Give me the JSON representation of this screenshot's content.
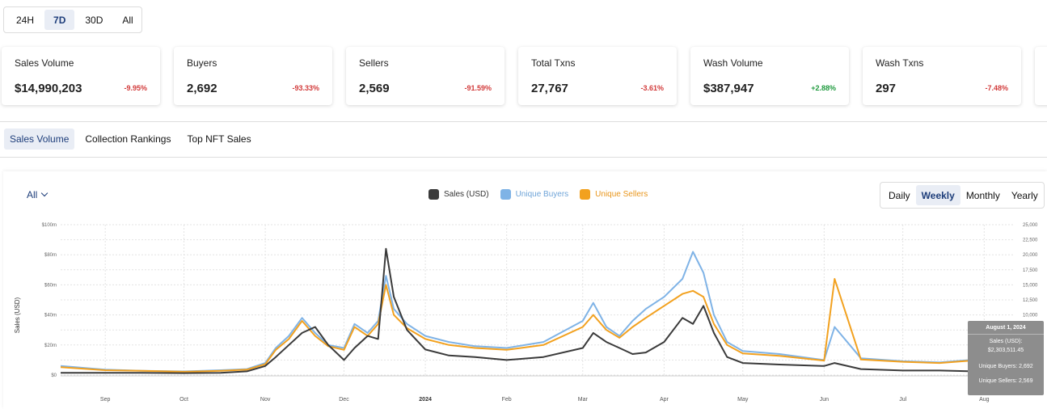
{
  "time_range": {
    "options": [
      "24H",
      "7D",
      "30D",
      "All"
    ],
    "selected": "7D"
  },
  "stats": [
    {
      "label": "Sales Volume",
      "value": "$14,990,203",
      "change": "-9.95%",
      "direction": "down"
    },
    {
      "label": "Buyers",
      "value": "2,692",
      "change": "-93.33%",
      "direction": "down"
    },
    {
      "label": "Sellers",
      "value": "2,569",
      "change": "-91.59%",
      "direction": "down"
    },
    {
      "label": "Total Txns",
      "value": "27,767",
      "change": "-3.61%",
      "direction": "down"
    },
    {
      "label": "Wash Volume",
      "value": "$387,947",
      "change": "+2.88%",
      "direction": "up"
    },
    {
      "label": "Wash Txns",
      "value": "297",
      "change": "-7.48%",
      "direction": "down"
    }
  ],
  "tabs": {
    "items": [
      "Sales Volume",
      "Collection Rankings",
      "Top NFT Sales"
    ],
    "selected": "Sales Volume"
  },
  "filter": {
    "label": "All"
  },
  "intervals": {
    "options": [
      "Daily",
      "Weekly",
      "Monthly",
      "Yearly"
    ],
    "selected": "Weekly"
  },
  "colors": {
    "sales": "#3a3a3a",
    "buyers": "#7fb3e6",
    "sellers": "#f2a11f",
    "accent": "#1d3d7a",
    "negative": "#d23b3b",
    "positive": "#1f9a3e"
  },
  "tooltip": {
    "date": "August 1, 2024",
    "sales_label": "Sales (USD):",
    "sales_value": "$2,303,511.45",
    "buyers": "Unique Buyers: 2,692",
    "sellers": "Unique Sellers: 2,569"
  },
  "chart_data": {
    "type": "line",
    "ylabel": "Sales (USD)",
    "y_left": {
      "min": 0,
      "max": 100000000,
      "ticks": [
        "$0",
        "$20m",
        "$40m",
        "$60m",
        "$80m",
        "$100m"
      ]
    },
    "y_right": {
      "min": 0,
      "max": 25000,
      "ticks": [
        "0",
        "2,500",
        "5,000",
        "7,500",
        "10,000",
        "12,500",
        "15,000",
        "17,500",
        "20,000",
        "22,500",
        "25,000"
      ]
    },
    "x_range": [
      "2023-08-15",
      "2024-08-12"
    ],
    "x_ticks": [
      {
        "label": "Sep",
        "date": "2023-09-01",
        "bold": false
      },
      {
        "label": "Oct",
        "date": "2023-10-01",
        "bold": false
      },
      {
        "label": "Nov",
        "date": "2023-11-01",
        "bold": false
      },
      {
        "label": "Dec",
        "date": "2023-12-01",
        "bold": false
      },
      {
        "label": "2024",
        "date": "2024-01-01",
        "bold": true
      },
      {
        "label": "Feb",
        "date": "2024-02-01",
        "bold": false
      },
      {
        "label": "Mar",
        "date": "2024-03-01",
        "bold": false
      },
      {
        "label": "Apr",
        "date": "2024-04-01",
        "bold": false
      },
      {
        "label": "May",
        "date": "2024-05-01",
        "bold": false
      },
      {
        "label": "Jun",
        "date": "2024-06-01",
        "bold": false
      },
      {
        "label": "Jul",
        "date": "2024-07-01",
        "bold": false
      },
      {
        "label": "Aug",
        "date": "2024-08-01",
        "bold": false
      }
    ],
    "grid": true,
    "legend_position": "top",
    "series": [
      {
        "name": "Sales (USD)",
        "axis": "left",
        "points": [
          [
            "2023-08-15",
            1500000
          ],
          [
            "2023-09-01",
            1500000
          ],
          [
            "2023-09-15",
            1500000
          ],
          [
            "2023-10-01",
            1300000
          ],
          [
            "2023-10-15",
            1500000
          ],
          [
            "2023-10-25",
            2500000
          ],
          [
            "2023-11-01",
            6000000
          ],
          [
            "2023-11-05",
            12000000
          ],
          [
            "2023-11-10",
            20000000
          ],
          [
            "2023-11-15",
            28000000
          ],
          [
            "2023-11-20",
            32000000
          ],
          [
            "2023-11-25",
            20000000
          ],
          [
            "2023-12-01",
            10000000
          ],
          [
            "2023-12-05",
            18000000
          ],
          [
            "2023-12-10",
            26000000
          ],
          [
            "2023-12-14",
            24000000
          ],
          [
            "2023-12-17",
            84000000
          ],
          [
            "2023-12-20",
            52000000
          ],
          [
            "2023-12-25",
            30000000
          ],
          [
            "2024-01-01",
            17000000
          ],
          [
            "2024-01-10",
            13000000
          ],
          [
            "2024-01-20",
            12000000
          ],
          [
            "2024-02-01",
            10000000
          ],
          [
            "2024-02-15",
            12000000
          ],
          [
            "2024-03-01",
            18000000
          ],
          [
            "2024-03-05",
            28000000
          ],
          [
            "2024-03-10",
            22000000
          ],
          [
            "2024-03-15",
            18000000
          ],
          [
            "2024-03-20",
            14000000
          ],
          [
            "2024-03-25",
            15000000
          ],
          [
            "2024-04-01",
            22000000
          ],
          [
            "2024-04-08",
            38000000
          ],
          [
            "2024-04-12",
            34000000
          ],
          [
            "2024-04-16",
            46000000
          ],
          [
            "2024-04-20",
            28000000
          ],
          [
            "2024-04-25",
            12000000
          ],
          [
            "2024-05-01",
            8000000
          ],
          [
            "2024-05-15",
            7000000
          ],
          [
            "2024-06-01",
            6000000
          ],
          [
            "2024-06-05",
            8000000
          ],
          [
            "2024-06-15",
            4000000
          ],
          [
            "2024-07-01",
            3000000
          ],
          [
            "2024-07-15",
            3000000
          ],
          [
            "2024-08-01",
            2303511
          ],
          [
            "2024-08-12",
            2500000
          ]
        ]
      },
      {
        "name": "Unique Buyers",
        "axis": "right",
        "points": [
          [
            "2023-08-15",
            1500
          ],
          [
            "2023-09-01",
            900
          ],
          [
            "2023-09-15",
            700
          ],
          [
            "2023-10-01",
            600
          ],
          [
            "2023-10-15",
            800
          ],
          [
            "2023-10-25",
            1000
          ],
          [
            "2023-11-01",
            2000
          ],
          [
            "2023-11-05",
            4500
          ],
          [
            "2023-11-10",
            6500
          ],
          [
            "2023-11-15",
            9500
          ],
          [
            "2023-11-20",
            7000
          ],
          [
            "2023-11-25",
            5000
          ],
          [
            "2023-12-01",
            4500
          ],
          [
            "2023-12-05",
            8500
          ],
          [
            "2023-12-10",
            7000
          ],
          [
            "2023-12-14",
            9000
          ],
          [
            "2023-12-17",
            16500
          ],
          [
            "2023-12-20",
            11000
          ],
          [
            "2023-12-25",
            8500
          ],
          [
            "2024-01-01",
            6500
          ],
          [
            "2024-01-10",
            5500
          ],
          [
            "2024-01-20",
            4800
          ],
          [
            "2024-02-01",
            4500
          ],
          [
            "2024-02-15",
            5500
          ],
          [
            "2024-03-01",
            9000
          ],
          [
            "2024-03-05",
            12000
          ],
          [
            "2024-03-10",
            8000
          ],
          [
            "2024-03-15",
            6500
          ],
          [
            "2024-03-20",
            9000
          ],
          [
            "2024-03-25",
            11000
          ],
          [
            "2024-04-01",
            13000
          ],
          [
            "2024-04-08",
            16000
          ],
          [
            "2024-04-12",
            20500
          ],
          [
            "2024-04-16",
            17000
          ],
          [
            "2024-04-20",
            10000
          ],
          [
            "2024-04-25",
            5500
          ],
          [
            "2024-05-01",
            4000
          ],
          [
            "2024-05-15",
            3500
          ],
          [
            "2024-06-01",
            2500
          ],
          [
            "2024-06-05",
            8000
          ],
          [
            "2024-06-15",
            2800
          ],
          [
            "2024-07-01",
            2300
          ],
          [
            "2024-07-15",
            2100
          ],
          [
            "2024-08-01",
            2692
          ],
          [
            "2024-08-12",
            2600
          ]
        ]
      },
      {
        "name": "Unique Sellers",
        "axis": "right",
        "points": [
          [
            "2023-08-15",
            1300
          ],
          [
            "2023-09-01",
            800
          ],
          [
            "2023-09-15",
            700
          ],
          [
            "2023-10-01",
            550
          ],
          [
            "2023-10-15",
            700
          ],
          [
            "2023-10-25",
            900
          ],
          [
            "2023-11-01",
            1800
          ],
          [
            "2023-11-05",
            4200
          ],
          [
            "2023-11-10",
            6000
          ],
          [
            "2023-11-15",
            9000
          ],
          [
            "2023-11-20",
            6500
          ],
          [
            "2023-11-25",
            4800
          ],
          [
            "2023-12-01",
            4200
          ],
          [
            "2023-12-05",
            8000
          ],
          [
            "2023-12-10",
            6500
          ],
          [
            "2023-12-14",
            8500
          ],
          [
            "2023-12-17",
            15000
          ],
          [
            "2023-12-20",
            10000
          ],
          [
            "2023-12-25",
            7800
          ],
          [
            "2024-01-01",
            6000
          ],
          [
            "2024-01-10",
            5000
          ],
          [
            "2024-01-20",
            4500
          ],
          [
            "2024-02-01",
            4200
          ],
          [
            "2024-02-15",
            5000
          ],
          [
            "2024-03-01",
            8000
          ],
          [
            "2024-03-05",
            10000
          ],
          [
            "2024-03-10",
            7500
          ],
          [
            "2024-03-15",
            6200
          ],
          [
            "2024-03-20",
            8000
          ],
          [
            "2024-03-25",
            9500
          ],
          [
            "2024-04-01",
            11500
          ],
          [
            "2024-04-08",
            13500
          ],
          [
            "2024-04-12",
            14000
          ],
          [
            "2024-04-16",
            13000
          ],
          [
            "2024-04-20",
            8500
          ],
          [
            "2024-04-25",
            5000
          ],
          [
            "2024-05-01",
            3600
          ],
          [
            "2024-05-15",
            3200
          ],
          [
            "2024-06-01",
            2400
          ],
          [
            "2024-06-05",
            16000
          ],
          [
            "2024-06-15",
            2600
          ],
          [
            "2024-07-01",
            2200
          ],
          [
            "2024-07-15",
            2000
          ],
          [
            "2024-08-01",
            2569
          ],
          [
            "2024-08-12",
            2500
          ]
        ]
      }
    ]
  }
}
